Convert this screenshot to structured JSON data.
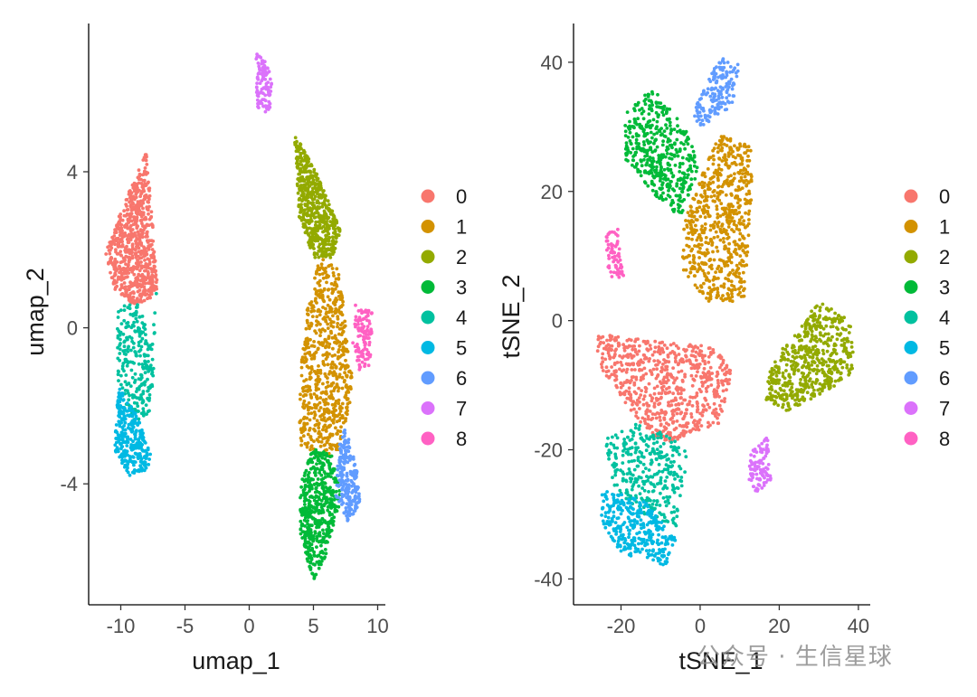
{
  "palette": [
    "#F8766D",
    "#D39200",
    "#93AA00",
    "#00BA38",
    "#00C19F",
    "#00B9E3",
    "#619CFF",
    "#DB72FB",
    "#FF61C3"
  ],
  "watermark": "公众号 · 生信星球",
  "chart_data": [
    {
      "type": "scatter",
      "title": "",
      "xlabel": "umap_1",
      "ylabel": "umap_2",
      "xlim": [
        -12.5,
        10.6
      ],
      "ylim": [
        -7.1,
        7.8
      ],
      "xticks": [
        -10,
        -5,
        0,
        5,
        10
      ],
      "xtick_labels": [
        "-10",
        "-5",
        "0",
        "5",
        "10"
      ],
      "yticks": [
        -4,
        0,
        4
      ],
      "ytick_labels": [
        "-4",
        "0",
        "4"
      ],
      "grid": false,
      "legend": {
        "title": "",
        "placement": "right",
        "entries": [
          "0",
          "1",
          "2",
          "3",
          "4",
          "5",
          "6",
          "7",
          "8"
        ]
      },
      "clusters": [
        {
          "name": "0",
          "points": 700,
          "shape": [
            [
              -11.2,
              1.9
            ],
            [
              -10.0,
              3.0
            ],
            [
              -8.0,
              4.5
            ],
            [
              -7.6,
              3.0
            ],
            [
              -7.1,
              1.0
            ],
            [
              -7.8,
              0.7
            ],
            [
              -9.0,
              0.6
            ],
            [
              -10.5,
              1.0
            ]
          ]
        },
        {
          "name": "1",
          "points": 650,
          "shape": [
            [
              5.5,
              1.8
            ],
            [
              7.0,
              1.5
            ],
            [
              8.1,
              -1.5
            ],
            [
              7.0,
              -3.2
            ],
            [
              5.5,
              -3.3
            ],
            [
              3.9,
              -3.0
            ],
            [
              4.0,
              -1.0
            ],
            [
              4.5,
              0.5
            ]
          ]
        },
        {
          "name": "2",
          "points": 550,
          "shape": [
            [
              3.5,
              5.0
            ],
            [
              5.2,
              4.0
            ],
            [
              7.1,
              2.5
            ],
            [
              6.5,
              1.8
            ],
            [
              5.0,
              1.8
            ],
            [
              3.9,
              2.8
            ]
          ]
        },
        {
          "name": "3",
          "points": 500,
          "shape": [
            [
              5.0,
              -3.0
            ],
            [
              6.5,
              -3.3
            ],
            [
              7.2,
              -4.3
            ],
            [
              6.0,
              -5.8
            ],
            [
              5.0,
              -6.5
            ],
            [
              3.9,
              -5.3
            ],
            [
              4.0,
              -4.0
            ]
          ]
        },
        {
          "name": "4",
          "points": 260,
          "shape": [
            [
              -10.3,
              0.6
            ],
            [
              -8.5,
              0.6
            ],
            [
              -7.6,
              -0.5
            ],
            [
              -7.2,
              1.0
            ],
            [
              -7.6,
              -2.3
            ],
            [
              -9.0,
              -2.4
            ],
            [
              -10.2,
              -1.5
            ]
          ]
        },
        {
          "name": "5",
          "points": 300,
          "shape": [
            [
              -10.2,
              -1.5
            ],
            [
              -8.8,
              -2.2
            ],
            [
              -7.6,
              -3.3
            ],
            [
              -8.0,
              -3.7
            ],
            [
              -9.5,
              -3.8
            ],
            [
              -10.5,
              -3.1
            ]
          ]
        },
        {
          "name": "6",
          "points": 220,
          "shape": [
            [
              7.5,
              -2.5
            ],
            [
              8.5,
              -3.8
            ],
            [
              8.6,
              -4.5
            ],
            [
              7.7,
              -5.0
            ],
            [
              6.7,
              -4.3
            ],
            [
              7.0,
              -3.0
            ]
          ]
        },
        {
          "name": "7",
          "points": 110,
          "shape": [
            [
              0.5,
              7.1
            ],
            [
              1.8,
              6.6
            ],
            [
              1.6,
              5.5
            ],
            [
              0.6,
              5.5
            ]
          ]
        },
        {
          "name": "8",
          "points": 110,
          "shape": [
            [
              8.2,
              0.6
            ],
            [
              9.6,
              0.4
            ],
            [
              9.4,
              -1.0
            ],
            [
              8.6,
              -1.1
            ],
            [
              8.0,
              -0.3
            ]
          ]
        }
      ]
    },
    {
      "type": "scatter",
      "title": "",
      "xlabel": "tSNE_1",
      "ylabel": "tSNE_2",
      "xlim": [
        -32,
        43
      ],
      "ylim": [
        -44,
        46
      ],
      "xticks": [
        -20,
        0,
        20,
        40
      ],
      "xtick_labels": [
        "-20",
        "0",
        "20",
        "40"
      ],
      "yticks": [
        -40,
        -20,
        0,
        20,
        40
      ],
      "ytick_labels": [
        "-40",
        "-20",
        "0",
        "20",
        "40"
      ],
      "grid": false,
      "legend": {
        "title": "",
        "placement": "right",
        "entries": [
          "0",
          "1",
          "2",
          "3",
          "4",
          "5",
          "6",
          "7",
          "8"
        ]
      },
      "clusters": [
        {
          "name": "0",
          "points": 700,
          "shape": [
            [
              -26,
              -2
            ],
            [
              -13,
              -3
            ],
            [
              4,
              -4
            ],
            [
              8,
              -8
            ],
            [
              5,
              -16
            ],
            [
              -8,
              -19
            ],
            [
              -14,
              -17
            ],
            [
              -22,
              -10
            ],
            [
              -26,
              -7
            ]
          ]
        },
        {
          "name": "1",
          "points": 650,
          "shape": [
            [
              -2,
              19
            ],
            [
              5,
              29
            ],
            [
              13,
              27
            ],
            [
              13,
              17
            ],
            [
              11,
              3
            ],
            [
              2,
              3
            ],
            [
              -5,
              8
            ],
            [
              -4,
              15
            ]
          ]
        },
        {
          "name": "2",
          "points": 550,
          "shape": [
            [
              24,
              -2
            ],
            [
              30,
              3
            ],
            [
              38,
              0
            ],
            [
              39,
              -8
            ],
            [
              32,
              -11
            ],
            [
              22,
              -14
            ],
            [
              16,
              -12
            ],
            [
              18,
              -6
            ]
          ]
        },
        {
          "name": "3",
          "points": 450,
          "shape": [
            [
              -19,
              32
            ],
            [
              -12,
              36
            ],
            [
              -4,
              30
            ],
            [
              0,
              24
            ],
            [
              -5,
              16
            ],
            [
              -11,
              19
            ],
            [
              -19,
              25
            ]
          ]
        },
        {
          "name": "4",
          "points": 320,
          "shape": [
            [
              -24,
              -18
            ],
            [
              -16,
              -16
            ],
            [
              -7,
              -18
            ],
            [
              -3,
              -20
            ],
            [
              -6,
              -32
            ],
            [
              -14,
              -30
            ],
            [
              -22,
              -26
            ]
          ]
        },
        {
          "name": "5",
          "points": 320,
          "shape": [
            [
              -25,
              -26
            ],
            [
              -14,
              -28
            ],
            [
              -6,
              -34
            ],
            [
              -8,
              -38
            ],
            [
              -20,
              -36
            ],
            [
              -25,
              -31
            ]
          ]
        },
        {
          "name": "6",
          "points": 170,
          "shape": [
            [
              -2,
              32
            ],
            [
              5,
              41
            ],
            [
              10,
              40
            ],
            [
              8,
              33
            ],
            [
              0,
              30
            ]
          ]
        },
        {
          "name": "7",
          "points": 100,
          "shape": [
            [
              13,
              -20
            ],
            [
              17,
              -18
            ],
            [
              18,
              -25
            ],
            [
              14,
              -27
            ],
            [
              12,
              -24
            ]
          ]
        },
        {
          "name": "8",
          "points": 70,
          "shape": [
            [
              -24,
              13
            ],
            [
              -21,
              15
            ],
            [
              -19,
              7
            ],
            [
              -23,
              6
            ]
          ]
        }
      ]
    }
  ]
}
